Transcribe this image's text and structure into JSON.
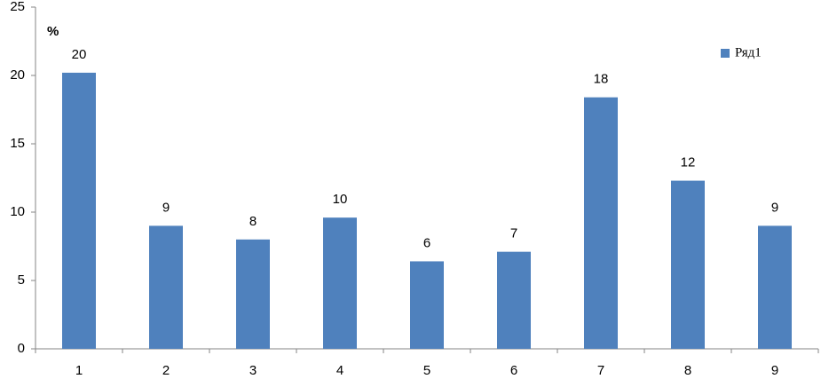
{
  "chart_data": {
    "type": "bar",
    "annotation": "%",
    "categories": [
      "1",
      "2",
      "3",
      "4",
      "5",
      "6",
      "7",
      "8",
      "9"
    ],
    "series": [
      {
        "name": "Ряд1",
        "color": "#4f81bd",
        "values": [
          20.2,
          9.0,
          8.0,
          9.6,
          6.4,
          7.1,
          18.4,
          12.3,
          9.0
        ],
        "value_labels": [
          "20",
          "9",
          "8",
          "10",
          "6",
          "7",
          "18",
          "12",
          "9"
        ]
      }
    ],
    "ylim": [
      0,
      25
    ],
    "yticks": [
      0,
      5,
      10,
      15,
      20,
      25
    ],
    "grid": false,
    "legend": "right"
  }
}
